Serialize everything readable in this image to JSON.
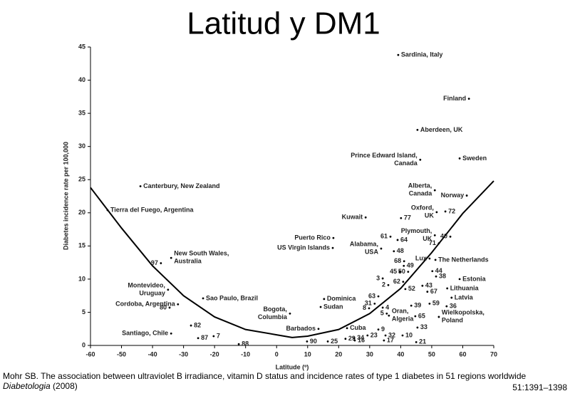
{
  "title": "Latitud y DM1",
  "chart_data": {
    "type": "scatter",
    "xlabel": "Latitude (º)",
    "ylabel": "Diabetes incidence rate per 100,000",
    "xlim": [
      -60,
      70
    ],
    "xticks": [
      -60,
      -50,
      -40,
      -30,
      -20,
      -10,
      0,
      10,
      20,
      30,
      40,
      50,
      60,
      70
    ],
    "ylim": [
      0,
      45
    ],
    "yticks": [
      0,
      5,
      10,
      15,
      20,
      25,
      30,
      35,
      40,
      45
    ],
    "color": "#000000",
    "fit": {
      "x": [
        -60,
        -50,
        -40,
        -30,
        -20,
        -10,
        0,
        5,
        10,
        20,
        30,
        40,
        50,
        60,
        70
      ],
      "y": [
        23.8,
        17.7,
        12,
        7.5,
        4.3,
        2.4,
        1.6,
        1.2,
        1.4,
        2.4,
        4.8,
        8.6,
        14,
        19.9,
        24.8
      ]
    },
    "points": [
      {
        "label": "Sardinia, Italy",
        "x": 39.2,
        "y": 43.8
      },
      {
        "label": "Finland",
        "x": 62,
        "y": 37.2
      },
      {
        "label": "Aberdeen, UK",
        "x": 45.4,
        "y": 32.5
      },
      {
        "label": [
          "Prince Edward Island,",
          "Canada"
        ],
        "x": 46.3,
        "y": 28.0
      },
      {
        "label": "Sweden",
        "x": 59,
        "y": 28.2
      },
      {
        "label": "Canterbury, New Zealand",
        "x": -43.9,
        "y": 24.0
      },
      {
        "label": "Tierra del Fuego, Argentina",
        "x": -54.5,
        "y": 20.4
      },
      {
        "label": [
          "Alberta,",
          "Canada"
        ],
        "x": 51,
        "y": 23.4
      },
      {
        "label": "Norway",
        "x": 61.3,
        "y": 22.6
      },
      {
        "label": "Kuwait",
        "x": 28.7,
        "y": 19.3
      },
      {
        "label": [
          "Oxford,",
          "UK"
        ],
        "x": 51.6,
        "y": 20.1
      },
      {
        "label": "72",
        "x": 54.4,
        "y": 20.2
      },
      {
        "label": "77",
        "x": 40.1,
        "y": 19.2
      },
      {
        "label": "Puerto Rico",
        "x": 18.3,
        "y": 16.2
      },
      {
        "label": "61",
        "x": 36.7,
        "y": 16.4
      },
      {
        "label": "64",
        "x": 39,
        "y": 15.9
      },
      {
        "label": [
          "Plymouth,",
          "UK"
        ],
        "x": 51,
        "y": 16.6
      },
      {
        "label": "40",
        "x": 56,
        "y": 16.4
      },
      {
        "label": "US Virgin Islands",
        "x": 18.1,
        "y": 14.7
      },
      {
        "label": [
          "Alabama,",
          "USA"
        ],
        "x": 33.7,
        "y": 14.6
      },
      {
        "label": "71",
        "x": 52.3,
        "y": 15.4
      },
      {
        "label": "48",
        "x": 37.8,
        "y": 14.2
      },
      {
        "label": [
          "New South Wales,",
          "Australia"
        ],
        "x": -34,
        "y": 13.2
      },
      {
        "label": "97",
        "x": -37.3,
        "y": 12.4
      },
      {
        "label": "Lux",
        "x": 49.3,
        "y": 13.1
      },
      {
        "label": "The Netherlands",
        "x": 51.2,
        "y": 12.9
      },
      {
        "label": "68",
        "x": 41.1,
        "y": 12.7
      },
      {
        "label": "49",
        "x": 41,
        "y": 12.0
      },
      {
        "label": "45",
        "x": 39.7,
        "y": 11.1
      },
      {
        "label": "50",
        "x": 42.4,
        "y": 11.1
      },
      {
        "label": "44",
        "x": 50.2,
        "y": 11.2
      },
      {
        "label": "38",
        "x": 51.4,
        "y": 10.4
      },
      {
        "label": "3",
        "x": 34.2,
        "y": 10.1
      },
      {
        "label": "Estonia",
        "x": 59,
        "y": 10.0
      },
      {
        "label": "62",
        "x": 40.8,
        "y": 9.6
      },
      {
        "label": "2",
        "x": 36,
        "y": 9.1
      },
      {
        "label": [
          "Montevideo,",
          "Uruguay"
        ],
        "x": -35,
        "y": 8.4
      },
      {
        "label": "43",
        "x": 47,
        "y": 9.0
      },
      {
        "label": "52",
        "x": 41.5,
        "y": 8.5
      },
      {
        "label": "67",
        "x": 48.6,
        "y": 8.1
      },
      {
        "label": "Lithuania",
        "x": 55,
        "y": 8.6
      },
      {
        "label": "Sao Paulo, Brazil",
        "x": -23.7,
        "y": 7.1
      },
      {
        "label": "Latvia",
        "x": 56.4,
        "y": 7.2
      },
      {
        "label": "Dominica",
        "x": 15.3,
        "y": 7.0
      },
      {
        "label": "63",
        "x": 32.8,
        "y": 7.4
      },
      {
        "label": "Cordoba, Argentina",
        "x": -31.8,
        "y": 6.2
      },
      {
        "label": "31",
        "x": 31.6,
        "y": 6.3
      },
      {
        "label": "59",
        "x": 49.3,
        "y": 6.3
      },
      {
        "label": "39",
        "x": 43.4,
        "y": 6.0
      },
      {
        "label": "36",
        "x": 54.8,
        "y": 5.9
      },
      {
        "label": "Sudan",
        "x": 14.2,
        "y": 5.8
      },
      {
        "label": "8",
        "x": 29.8,
        "y": 5.6
      },
      {
        "label": "4",
        "x": 34.2,
        "y": 5.7
      },
      {
        "label": "80",
        "x": -34.5,
        "y": 5.7
      },
      {
        "label": [
          "Bogota,",
          "Columbia"
        ],
        "x": 4.3,
        "y": 4.8
      },
      {
        "label": "5",
        "x": 35.5,
        "y": 4.8
      },
      {
        "label": [
          "Oran,",
          "Algeria"
        ],
        "x": 36.2,
        "y": 4.5
      },
      {
        "label": "65",
        "x": 44.7,
        "y": 4.4
      },
      {
        "label": [
          "Wielkopolska,",
          "Poland"
        ],
        "x": 52.3,
        "y": 4.3
      },
      {
        "label": "82",
        "x": -27.6,
        "y": 3.0
      },
      {
        "label": "Barbados",
        "x": 13.5,
        "y": 2.5
      },
      {
        "label": "33",
        "x": 45.4,
        "y": 2.7
      },
      {
        "label": "Cuba",
        "x": 22.7,
        "y": 2.6
      },
      {
        "label": "9",
        "x": 32.8,
        "y": 2.4
      },
      {
        "label": "Santiago, Chile",
        "x": -34,
        "y": 1.8
      },
      {
        "label": "7",
        "x": -20.3,
        "y": 1.4
      },
      {
        "label": "87",
        "x": -25.3,
        "y": 1.1
      },
      {
        "label": "23",
        "x": 29.3,
        "y": 1.5
      },
      {
        "label": "32",
        "x": 35.1,
        "y": 1.5
      },
      {
        "label": "10",
        "x": 40.6,
        "y": 1.5
      },
      {
        "label": "29",
        "x": 22.2,
        "y": 1.0
      },
      {
        "label": "34",
        "x": 25,
        "y": 1.1
      },
      {
        "label": "16",
        "x": 25.2,
        "y": 0.75
      },
      {
        "label": "17",
        "x": 34.6,
        "y": 0.75
      },
      {
        "label": "21",
        "x": 45,
        "y": 0.5
      },
      {
        "label": "25",
        "x": 16.5,
        "y": 0.6
      },
      {
        "label": "88",
        "x": -12.2,
        "y": 0.2
      },
      {
        "label": "90",
        "x": 9.8,
        "y": 0.6
      }
    ]
  },
  "caption": {
    "parts": [
      "Mohr SB. The association between ultraviolet B irradiance, vitamin D status and incidence rates of type 1 diabetes in 51 regions worldwide ",
      "Diabetologia",
      " (2008)"
    ],
    "line2": "51:1391–1398"
  }
}
